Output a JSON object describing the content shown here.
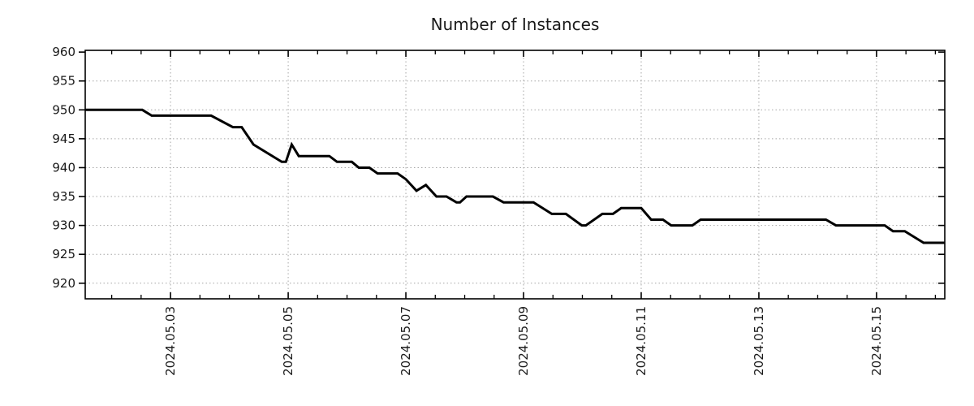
{
  "title": "Number of Instances",
  "colors": {
    "line": "#000000",
    "grid": "#a6a6a6",
    "text": "#1a1a1a",
    "frame": "#000000",
    "background": "#ffffff"
  },
  "chart_data": {
    "type": "line",
    "title": "Number of Instances",
    "xlabel": "",
    "ylabel": "",
    "x_unit": "day of May 2024 (fractional)",
    "xlim": [
      1.55,
      16.16
    ],
    "ylim": [
      917.3,
      960.3
    ],
    "y_ticks": [
      920,
      925,
      930,
      935,
      940,
      945,
      950,
      955,
      960
    ],
    "x_major_ticks": [
      {
        "day": 3,
        "label": "2024.05.03"
      },
      {
        "day": 5,
        "label": "2024.05.05"
      },
      {
        "day": 7,
        "label": "2024.05.07"
      },
      {
        "day": 9,
        "label": "2024.05.09"
      },
      {
        "day": 11,
        "label": "2024.05.11"
      },
      {
        "day": 13,
        "label": "2024.05.13"
      },
      {
        "day": 15,
        "label": "2024.05.15"
      }
    ],
    "x_minor_tick_step_days": 0.5,
    "grid": "dotted lines at major ticks",
    "legend": "none",
    "series": [
      {
        "name": "Number of Instances",
        "color": "#000000",
        "line_width": 3,
        "points": [
          [
            1.55,
            950
          ],
          [
            2.52,
            950
          ],
          [
            2.68,
            949
          ],
          [
            3.69,
            949
          ],
          [
            4.06,
            947
          ],
          [
            4.21,
            947
          ],
          [
            4.41,
            944
          ],
          [
            4.89,
            941
          ],
          [
            4.96,
            941
          ],
          [
            5.06,
            944
          ],
          [
            5.18,
            942
          ],
          [
            5.7,
            942
          ],
          [
            5.83,
            941
          ],
          [
            6.08,
            941
          ],
          [
            6.2,
            940
          ],
          [
            6.38,
            940
          ],
          [
            6.52,
            939
          ],
          [
            6.86,
            939
          ],
          [
            7.0,
            938
          ],
          [
            7.18,
            936
          ],
          [
            7.34,
            937
          ],
          [
            7.52,
            935
          ],
          [
            7.69,
            935
          ],
          [
            7.86,
            934
          ],
          [
            7.92,
            934
          ],
          [
            8.03,
            935
          ],
          [
            8.48,
            935
          ],
          [
            8.66,
            934
          ],
          [
            9.17,
            934
          ],
          [
            9.48,
            932
          ],
          [
            9.72,
            932
          ],
          [
            9.99,
            930
          ],
          [
            10.06,
            930
          ],
          [
            10.34,
            932
          ],
          [
            10.52,
            932
          ],
          [
            10.66,
            933
          ],
          [
            11.0,
            933
          ],
          [
            11.17,
            931
          ],
          [
            11.37,
            931
          ],
          [
            11.51,
            930
          ],
          [
            11.87,
            930
          ],
          [
            12.01,
            931
          ],
          [
            14.14,
            931
          ],
          [
            14.31,
            930
          ],
          [
            15.14,
            930
          ],
          [
            15.28,
            929
          ],
          [
            15.48,
            929
          ],
          [
            15.8,
            927
          ],
          [
            16.16,
            927
          ]
        ]
      }
    ]
  }
}
